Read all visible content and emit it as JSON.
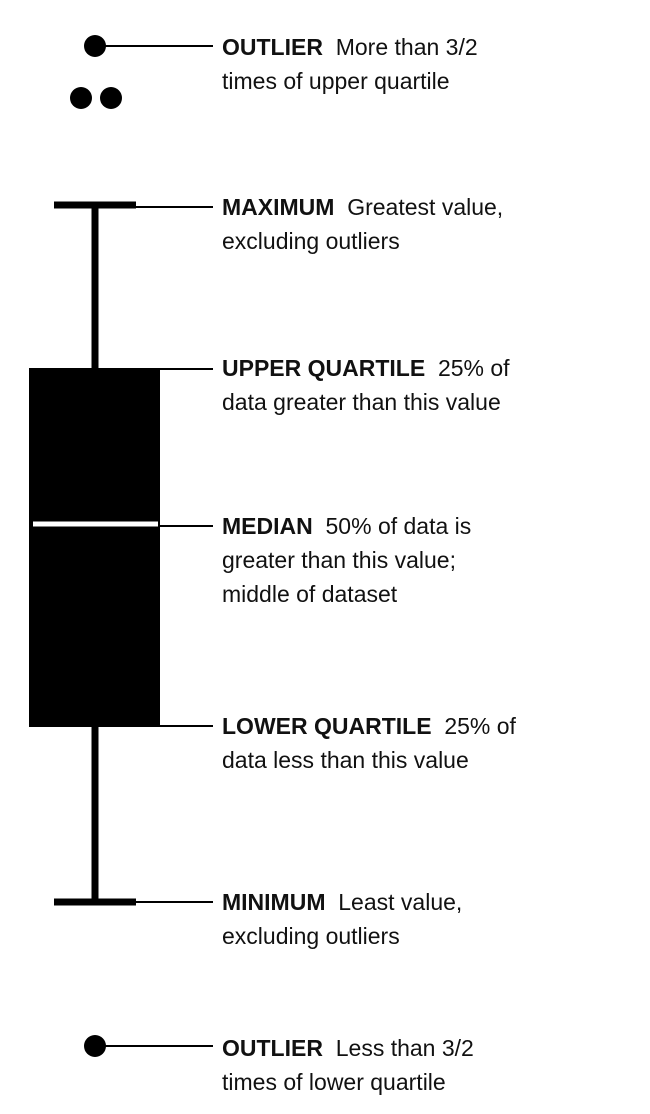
{
  "labels": {
    "outlier_top": {
      "term": "OUTLIER",
      "line1": "More than 3/2",
      "line2": "times of upper quartile"
    },
    "maximum": {
      "term": "MAXIMUM",
      "line1": "Greatest value,",
      "line2": "excluding outliers"
    },
    "upper_quartile": {
      "term": "UPPER QUARTILE",
      "line1": "25% of",
      "line2": "data greater than this value"
    },
    "median": {
      "term": "MEDIAN",
      "line1": "50% of data is",
      "line2": "greater than this value;",
      "line3": "middle of dataset"
    },
    "lower_quartile": {
      "term": "LOWER QUARTILE",
      "line1": "25% of",
      "line2": "data less than this value"
    },
    "minimum": {
      "term": "MINIMUM",
      "line1": "Least value,",
      "line2": "excluding outliers"
    },
    "outlier_bottom": {
      "term": "OUTLIER",
      "line1": "Less than 3/2",
      "line2": "times of lower quartile"
    }
  },
  "colors": {
    "ink": "#000000",
    "median_line": "#ffffff",
    "background": "#ffffff"
  }
}
